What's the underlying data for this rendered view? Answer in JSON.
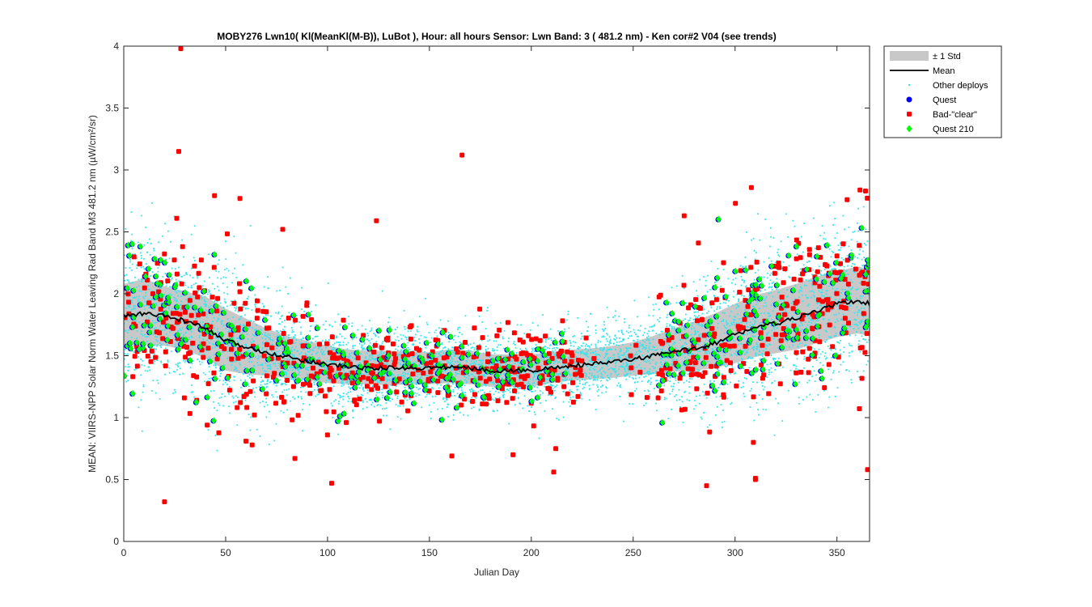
{
  "chart_data": {
    "type": "scatter",
    "title": "MOBY276   Lwn10( Kl(MeanKl(M-B)), LuBot ),   Hour: all hours  Sensor: Lwn Band: 3 ( 481.2 nm)  - Ken cor#2 V04 (see trends)",
    "xlabel": "Julian Day",
    "ylabel": "MEAN: VIIRS-NPP Solar Norm Water Leaving Rad Band M3 481.2 nm (µW/cm²/sr)",
    "xlim": [
      0,
      366
    ],
    "ylim": [
      0,
      4
    ],
    "x_ticks": [
      0,
      50,
      100,
      150,
      200,
      250,
      300,
      350
    ],
    "y_ticks": [
      0,
      0.5,
      1,
      1.5,
      2,
      2.5,
      3,
      3.5,
      4
    ],
    "grid": false,
    "legend_position": "outside-top-right",
    "legend": [
      {
        "label": "± 1 Std",
        "style": "band",
        "color": "#c8c8c8"
      },
      {
        "label": "Mean",
        "style": "line",
        "color": "#000000"
      },
      {
        "label": "Other deploys",
        "style": "dot",
        "color": "#33e6ee"
      },
      {
        "label": "Quest",
        "style": "circle",
        "color": "#0000ff"
      },
      {
        "label": "Bad-\"clear\"",
        "style": "square",
        "color": "#ff0000"
      },
      {
        "label": "Quest 210",
        "style": "diamond",
        "color": "#00ff00"
      }
    ],
    "mean": {
      "x": [
        0,
        10,
        20,
        30,
        40,
        50,
        60,
        70,
        80,
        90,
        100,
        110,
        120,
        130,
        140,
        150,
        160,
        170,
        180,
        190,
        200,
        210,
        220,
        230,
        240,
        250,
        260,
        270,
        280,
        290,
        300,
        310,
        320,
        330,
        340,
        350,
        360,
        366
      ],
      "y": [
        1.82,
        1.84,
        1.82,
        1.78,
        1.72,
        1.62,
        1.57,
        1.53,
        1.49,
        1.46,
        1.43,
        1.41,
        1.4,
        1.4,
        1.4,
        1.4,
        1.41,
        1.4,
        1.38,
        1.38,
        1.38,
        1.4,
        1.42,
        1.43,
        1.45,
        1.47,
        1.5,
        1.53,
        1.56,
        1.6,
        1.67,
        1.73,
        1.76,
        1.8,
        1.86,
        1.92,
        1.94,
        1.92
      ]
    },
    "std_band": {
      "x": [
        0,
        10,
        20,
        30,
        40,
        50,
        60,
        70,
        80,
        90,
        100,
        110,
        120,
        130,
        140,
        150,
        160,
        170,
        180,
        190,
        200,
        210,
        220,
        230,
        240,
        250,
        260,
        270,
        280,
        290,
        300,
        310,
        320,
        330,
        340,
        350,
        360,
        366
      ],
      "upper": [
        2.08,
        2.12,
        2.06,
        2.02,
        1.98,
        1.88,
        1.8,
        1.72,
        1.66,
        1.62,
        1.58,
        1.55,
        1.54,
        1.54,
        1.53,
        1.53,
        1.55,
        1.54,
        1.51,
        1.51,
        1.51,
        1.53,
        1.55,
        1.56,
        1.58,
        1.61,
        1.66,
        1.72,
        1.78,
        1.84,
        1.92,
        1.99,
        2.03,
        2.08,
        2.14,
        2.18,
        2.22,
        2.2
      ],
      "lower": [
        1.56,
        1.58,
        1.58,
        1.55,
        1.48,
        1.38,
        1.35,
        1.34,
        1.32,
        1.3,
        1.28,
        1.27,
        1.27,
        1.26,
        1.27,
        1.27,
        1.28,
        1.27,
        1.25,
        1.25,
        1.25,
        1.28,
        1.3,
        1.31,
        1.32,
        1.34,
        1.35,
        1.37,
        1.38,
        1.4,
        1.44,
        1.49,
        1.52,
        1.55,
        1.6,
        1.65,
        1.68,
        1.66
      ]
    },
    "bad_clear_outliers": {
      "x": [
        28,
        27,
        26,
        57,
        166,
        124,
        78,
        275,
        282,
        355,
        364,
        20,
        100,
        102,
        60,
        63,
        84,
        161,
        191,
        212,
        211,
        286,
        309,
        310,
        310,
        365
      ],
      "y": [
        3.98,
        3.15,
        2.61,
        2.77,
        3.12,
        2.59,
        2.52,
        2.63,
        2.41,
        2.76,
        2.83,
        0.32,
        0.86,
        0.47,
        0.81,
        0.78,
        0.67,
        0.69,
        0.7,
        0.75,
        0.56,
        0.45,
        0.8,
        0.51,
        0.5,
        0.58
      ]
    },
    "quest210_highlights": {
      "x": [
        2,
        4,
        8,
        12,
        15,
        18,
        20,
        22,
        60,
        105,
        106,
        108,
        200,
        203,
        290,
        300,
        305,
        310,
        330,
        340,
        345,
        357,
        362,
        365
      ],
      "y": [
        2.39,
        2.4,
        2.38,
        2.2,
        2.28,
        2.27,
        2.25,
        1.93,
        1.51,
        0.97,
        1.01,
        1.03,
        1.13,
        1.16,
        2.05,
        2.18,
        2.19,
        2.07,
        2.38,
        2.3,
        2.39,
        2.31,
        2.53,
        2.27
      ]
    }
  }
}
